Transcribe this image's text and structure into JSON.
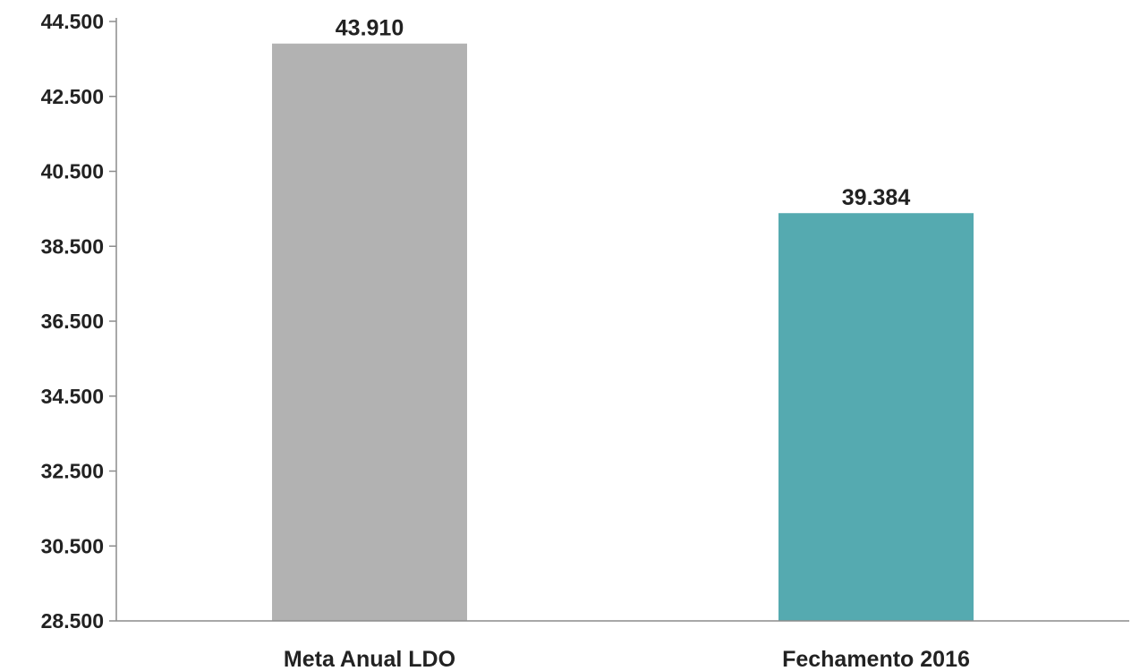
{
  "chart_data": {
    "type": "bar",
    "categories": [
      "Meta Anual LDO",
      "Fechamento 2016"
    ],
    "values": [
      43910,
      39384
    ],
    "value_labels": [
      "43.910",
      "39.384"
    ],
    "colors": [
      "#b2b2b2",
      "#55aab0"
    ],
    "title": "",
    "xlabel": "",
    "ylabel": "",
    "ylim": [
      28500,
      44500
    ],
    "yticks": [
      28500,
      30500,
      32500,
      34500,
      36500,
      38500,
      40500,
      42500,
      44500
    ],
    "ytick_labels": [
      "28.500",
      "30.500",
      "32.500",
      "34.500",
      "36.500",
      "38.500",
      "40.500",
      "42.500",
      "44.500"
    ],
    "grid": false,
    "legend": "none"
  }
}
